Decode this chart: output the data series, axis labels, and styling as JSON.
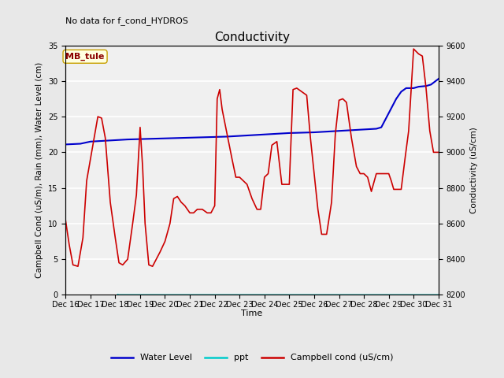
{
  "title": "Conductivity",
  "top_left_text": "No data for f_cond_HYDROS",
  "station_label": "MB_tule",
  "ylabel_left": "Campbell Cond (uS/m), Rain (mm), Water Level (cm)",
  "ylabel_right": "Conductivity (uS/cm)",
  "xlabel": "Time",
  "ylim_left": [
    0,
    35
  ],
  "ylim_right": [
    8200,
    9600
  ],
  "yticks_left": [
    0,
    5,
    10,
    15,
    20,
    25,
    30,
    35
  ],
  "yticks_right": [
    8200,
    8400,
    8600,
    8800,
    9000,
    9200,
    9400,
    9600
  ],
  "xtick_labels": [
    "Dec 16",
    "Dec 17",
    "Dec 18",
    "Dec 19",
    "Dec 20",
    "Dec 21",
    "Dec 22",
    "Dec 23",
    "Dec 24",
    "Dec 25",
    "Dec 26",
    "Dec 27",
    "Dec 28",
    "Dec 29",
    "Dec 30",
    "Dec 31"
  ],
  "bg_color": "#e8e8e8",
  "plot_bg_color": "#e8e8e8",
  "plot_inner_bg": "#f0f0f0",
  "water_level_color": "#0000cc",
  "ppt_color": "#00cccc",
  "campbell_color": "#cc0000",
  "water_level_x": [
    0,
    0.3,
    0.6,
    1.0,
    1.5,
    2.0,
    2.5,
    3.0,
    3.5,
    4.0,
    4.5,
    5.0,
    5.5,
    6.0,
    6.5,
    7.0,
    7.5,
    8.0,
    8.5,
    9.0,
    9.5,
    10.0,
    10.5,
    11.0,
    11.5,
    12.0,
    12.5,
    12.7,
    13.0,
    13.3,
    13.5,
    13.7,
    14.0,
    14.2,
    14.5,
    14.7,
    15.0
  ],
  "water_level_y": [
    21.1,
    21.15,
    21.2,
    21.5,
    21.6,
    21.7,
    21.8,
    21.85,
    21.9,
    21.95,
    22.0,
    22.05,
    22.1,
    22.15,
    22.2,
    22.3,
    22.4,
    22.5,
    22.6,
    22.7,
    22.75,
    22.8,
    22.9,
    23.0,
    23.1,
    23.2,
    23.3,
    23.5,
    25.5,
    27.5,
    28.5,
    29.0,
    29.0,
    29.2,
    29.3,
    29.5,
    30.3
  ],
  "ppt_x": [
    2.1,
    2.15,
    26.5,
    26.55,
    26.6,
    26.65,
    26.7
  ],
  "ppt_y": [
    0.05,
    0.0,
    0.0,
    0.3,
    0.8,
    0.4,
    0.0
  ],
  "campbell_x": [
    0.0,
    0.15,
    0.3,
    0.5,
    0.7,
    0.85,
    1.0,
    1.15,
    1.3,
    1.45,
    1.6,
    1.8,
    2.0,
    2.15,
    2.3,
    2.5,
    2.7,
    2.85,
    3.0,
    3.1,
    3.2,
    3.35,
    3.5,
    3.65,
    3.8,
    4.0,
    4.2,
    4.35,
    4.5,
    4.65,
    4.8,
    5.0,
    5.15,
    5.3,
    5.5,
    5.7,
    5.85,
    6.0,
    6.1,
    6.2,
    6.3,
    6.5,
    6.7,
    6.85,
    7.0,
    7.15,
    7.3,
    7.5,
    7.7,
    7.85,
    8.0,
    8.15,
    8.3,
    8.5,
    8.7,
    8.85,
    9.0,
    9.15,
    9.3,
    9.5,
    9.7,
    9.85,
    10.0,
    10.15,
    10.3,
    10.5,
    10.7,
    10.85,
    11.0,
    11.15,
    11.3,
    11.5,
    11.7,
    11.85,
    12.0,
    12.15,
    12.3,
    12.5,
    12.7,
    12.85,
    13.0,
    13.1,
    13.2,
    13.35,
    13.5,
    13.65,
    13.8,
    14.0,
    14.2,
    14.35,
    14.5,
    14.65,
    14.8,
    15.0
  ],
  "campbell_y": [
    10.5,
    7.0,
    4.2,
    4.0,
    8.0,
    16.0,
    19.0,
    22.0,
    25.0,
    24.8,
    22.0,
    13.0,
    8.0,
    4.5,
    4.2,
    5.0,
    10.0,
    14.0,
    23.5,
    18.0,
    10.0,
    4.2,
    4.0,
    5.0,
    6.0,
    7.5,
    10.0,
    13.5,
    13.8,
    13.0,
    12.5,
    11.5,
    11.5,
    12.0,
    12.0,
    11.5,
    11.5,
    12.5,
    27.5,
    28.8,
    26.0,
    22.5,
    19.0,
    16.5,
    16.5,
    16.0,
    15.5,
    13.5,
    12.0,
    12.0,
    16.5,
    17.0,
    21.0,
    21.5,
    15.5,
    15.5,
    15.5,
    28.8,
    29.0,
    28.5,
    28.0,
    22.0,
    17.0,
    12.0,
    8.5,
    8.5,
    13.0,
    22.5,
    27.3,
    27.5,
    27.0,
    22.0,
    18.0,
    17.0,
    17.0,
    16.5,
    14.5,
    17.0,
    17.0,
    17.0,
    17.0,
    16.0,
    14.8,
    14.8,
    14.8,
    19.0,
    23.0,
    34.5,
    33.8,
    33.5,
    29.0,
    23.0,
    20.0,
    20.0
  ]
}
